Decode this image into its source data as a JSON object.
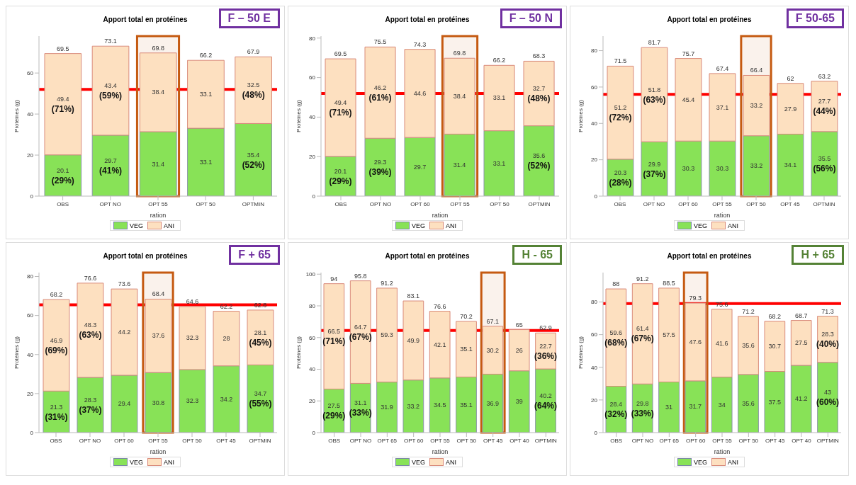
{
  "chart_data": [
    {
      "type": "bar",
      "title": "Apport total en protéines",
      "subtitle": "F – 50 E",
      "xlabel": "ration",
      "ylabel": "Protéines (g)",
      "stacked": true,
      "legend": "bottom",
      "categories": [
        "OBS",
        "OPT NO",
        "OPT 55",
        "OPT 50",
        "OPTMIN"
      ],
      "series": [
        {
          "name": "VEG",
          "color": "#88e257",
          "values": [
            20.1,
            29.7,
            31.4,
            33.1,
            35.4
          ],
          "value_labels": [
            "20.1 (29%)",
            "29.7 (41%)",
            "31.4",
            "33.1",
            "35.4 (52%)"
          ]
        },
        {
          "name": "ANI",
          "color": "#fde0c0",
          "values": [
            49.4,
            43.4,
            38.4,
            33.1,
            32.5
          ],
          "value_labels": [
            "49.4 (71%)",
            "43.4 (59%)",
            "38.4",
            "33.1",
            "32.5 (48%)"
          ]
        }
      ],
      "totals": [
        "69.5",
        "73.1",
        "69.8",
        "66.2",
        "67.9"
      ],
      "ylim": [
        0,
        78
      ],
      "yticks": [
        0,
        20,
        40,
        60
      ],
      "ref_lines": [
        {
          "axis": "y",
          "value": 52,
          "color": "#ff0000"
        }
      ],
      "bands": [
        {
          "axis": "x",
          "from": "OPT 55",
          "to": "OPT 55",
          "color": "#c55a11"
        }
      ]
    },
    {
      "type": "bar",
      "title": "Apport total en protéines",
      "subtitle": "F – 50 N",
      "xlabel": "ration",
      "ylabel": "Protéines (g)",
      "stacked": true,
      "legend": "bottom",
      "categories": [
        "OBS",
        "OPT NO",
        "OPT 60",
        "OPT 55",
        "OPT 50",
        "OPTMIN"
      ],
      "series": [
        {
          "name": "VEG",
          "color": "#88e257",
          "values": [
            20.1,
            29.3,
            29.7,
            31.4,
            33.1,
            35.6
          ],
          "value_labels": [
            "20.1 (29%)",
            "29.3 (39%)",
            "29.7",
            "31.4",
            "33.1",
            "35.6 (52%)"
          ]
        },
        {
          "name": "ANI",
          "color": "#fde0c0",
          "values": [
            49.4,
            46.2,
            44.6,
            38.4,
            33.1,
            32.7
          ],
          "value_labels": [
            "49.4 (71%)",
            "46.2 (61%)",
            "44.6",
            "38.4",
            "33.1",
            "32.7 (48%)"
          ]
        }
      ],
      "totals": [
        "69.5",
        "75.5",
        "74.3",
        "69.8",
        "66.2",
        "68.3"
      ],
      "ylim": [
        0,
        81
      ],
      "yticks": [
        0,
        20,
        40,
        60,
        80
      ],
      "ref_lines": [
        {
          "axis": "y",
          "value": 52,
          "color": "#ff0000"
        }
      ],
      "bands": [
        {
          "axis": "x",
          "from": "OPT 55",
          "to": "OPT 55",
          "color": "#c55a11"
        }
      ]
    },
    {
      "type": "bar",
      "title": "Apport total en protéines",
      "subtitle": "F 50-65",
      "xlabel": "ration",
      "ylabel": "Protéines (g)",
      "stacked": true,
      "legend": "bottom",
      "categories": [
        "OBS",
        "OPT NO",
        "OPT 60",
        "OPT 55",
        "OPT 50",
        "OPT 45",
        "OPTMIN"
      ],
      "series": [
        {
          "name": "VEG",
          "color": "#88e257",
          "values": [
            20.3,
            29.9,
            30.3,
            30.3,
            33.2,
            34.1,
            35.5
          ],
          "value_labels": [
            "20.3 (28%)",
            "29.9 (37%)",
            "30.3",
            "30.3",
            "33.2",
            "34.1",
            "35.5 (56%)"
          ]
        },
        {
          "name": "ANI",
          "color": "#fde0c0",
          "values": [
            51.2,
            51.8,
            45.4,
            37.1,
            33.2,
            27.9,
            27.7
          ],
          "value_labels": [
            "51.2 (72%)",
            "51.8 (63%)",
            "45.4",
            "37.1",
            "33.2",
            "27.9",
            "27.7 (44%)"
          ]
        }
      ],
      "totals": [
        "71.5",
        "81.7",
        "75.7",
        "67.4",
        "66.4",
        "62",
        "63.2"
      ],
      "ylim": [
        0,
        88
      ],
      "yticks": [
        0,
        20,
        40,
        60,
        80
      ],
      "ref_lines": [
        {
          "axis": "y",
          "value": 56,
          "color": "#ff0000"
        }
      ],
      "bands": [
        {
          "axis": "x",
          "from": "OPT 50",
          "to": "OPT 50",
          "color": "#c55a11"
        }
      ]
    },
    {
      "type": "bar",
      "title": "Apport total en protéines",
      "subtitle": "F + 65",
      "xlabel": "ration",
      "ylabel": "Protéines (g)",
      "stacked": true,
      "legend": "bottom",
      "categories": [
        "OBS",
        "OPT NO",
        "OPT 60",
        "OPT 55",
        "OPT 50",
        "OPT 45",
        "OPTMIN"
      ],
      "series": [
        {
          "name": "VEG",
          "color": "#88e257",
          "values": [
            21.3,
            28.3,
            29.4,
            30.8,
            32.3,
            34.2,
            34.7
          ],
          "value_labels": [
            "21.3 (31%)",
            "28.3 (37%)",
            "29.4",
            "30.8",
            "32.3",
            "34.2",
            "34.7 (55%)"
          ]
        },
        {
          "name": "ANI",
          "color": "#fde0c0",
          "values": [
            46.9,
            48.3,
            44.2,
            37.6,
            32.3,
            28,
            28.1
          ],
          "value_labels": [
            "46.9 (69%)",
            "48.3 (63%)",
            "44.2",
            "37.6",
            "32.3",
            "28",
            "28.1 (45%)"
          ]
        }
      ],
      "totals": [
        "68.2",
        "76.6",
        "73.6",
        "68.4",
        "64.6",
        "62.2",
        "62.8"
      ],
      "ylim": [
        0,
        82
      ],
      "yticks": [
        0,
        20,
        40,
        60,
        80
      ],
      "ref_lines": [
        {
          "axis": "y",
          "value": 65.5,
          "color": "#ff0000"
        }
      ],
      "bands": [
        {
          "axis": "x",
          "from": "OPT 55",
          "to": "OPT 55",
          "color": "#c55a11"
        }
      ]
    },
    {
      "type": "bar",
      "title": "Apport total en protéines",
      "subtitle": "H - 65",
      "xlabel": "ration",
      "ylabel": "Protéines (g)",
      "stacked": true,
      "legend": "bottom",
      "categories": [
        "OBS",
        "OPT NO",
        "OPT 65",
        "OPT 60",
        "OPT 55",
        "OPT 50",
        "OPT 45",
        "OPT 40",
        "OPTMIN"
      ],
      "series": [
        {
          "name": "VEG",
          "color": "#88e257",
          "values": [
            27.5,
            31.1,
            31.9,
            33.2,
            34.5,
            35.1,
            36.9,
            39,
            40.2
          ],
          "value_labels": [
            "27.5 (29%)",
            "31.1 (33%)",
            "31.9",
            "33.2",
            "34.5",
            "35.1",
            "36.9",
            "39",
            "40.2 (64%)"
          ]
        },
        {
          "name": "ANI",
          "color": "#fde0c0",
          "values": [
            66.5,
            64.7,
            59.3,
            49.9,
            42.1,
            35.1,
            30.2,
            26,
            22.7
          ],
          "value_labels": [
            "66.5 (71%)",
            "64.7 (67%)",
            "59.3",
            "49.9",
            "42.1",
            "35.1",
            "30.2",
            "26",
            "22.7 (36%)"
          ]
        }
      ],
      "totals": [
        "94",
        "95.8",
        "91.2",
        "83.1",
        "76.6",
        "70.2",
        "67.1",
        "65",
        "62.9"
      ],
      "ylim": [
        0,
        101
      ],
      "yticks": [
        0,
        20,
        40,
        60,
        80,
        100
      ],
      "ref_lines": [
        {
          "axis": "y",
          "value": 64.5,
          "color": "#ff0000"
        }
      ],
      "bands": [
        {
          "axis": "x",
          "from": "OPT 45",
          "to": "OPT 45",
          "color": "#c55a11"
        }
      ]
    },
    {
      "type": "bar",
      "title": "Apport total en protéines",
      "subtitle": "H + 65",
      "xlabel": "ration",
      "ylabel": "Protéines (g)",
      "stacked": true,
      "legend": "bottom",
      "categories": [
        "OBS",
        "OPT NO",
        "OPT 65",
        "OPT 60",
        "OPT 55",
        "OPT 50",
        "OPT 45",
        "OPT 40",
        "OPTMIN"
      ],
      "series": [
        {
          "name": "VEG",
          "color": "#88e257",
          "values": [
            28.4,
            29.8,
            31,
            31.7,
            34,
            35.6,
            37.5,
            41.2,
            43
          ],
          "value_labels": [
            "28.4 (32%)",
            "29.8 (33%)",
            "31",
            "31.7",
            "34",
            "35.6",
            "37.5",
            "41.2",
            "43 (60%)"
          ]
        },
        {
          "name": "ANI",
          "color": "#fde0c0",
          "values": [
            59.6,
            61.4,
            57.5,
            47.6,
            41.6,
            35.6,
            30.7,
            27.5,
            28.3
          ],
          "value_labels": [
            "59.6 (68%)",
            "61.4 (67%)",
            "57.5",
            "47.6",
            "41.6",
            "35.6",
            "30.7",
            "27.5",
            "28.3 (40%)"
          ]
        }
      ],
      "totals": [
        "88",
        "91.2",
        "88.5",
        "79.3",
        "75.6",
        "71.2",
        "68.2",
        "68.7",
        "71.3"
      ],
      "ylim": [
        0,
        98
      ],
      "yticks": [
        0,
        20,
        40,
        60,
        80
      ],
      "ref_lines": [
        {
          "axis": "y",
          "value": 79,
          "color": "#ff0000"
        }
      ],
      "bands": [
        {
          "axis": "x",
          "from": "OPT 60",
          "to": "OPT 60",
          "color": "#c55a11"
        }
      ]
    }
  ]
}
